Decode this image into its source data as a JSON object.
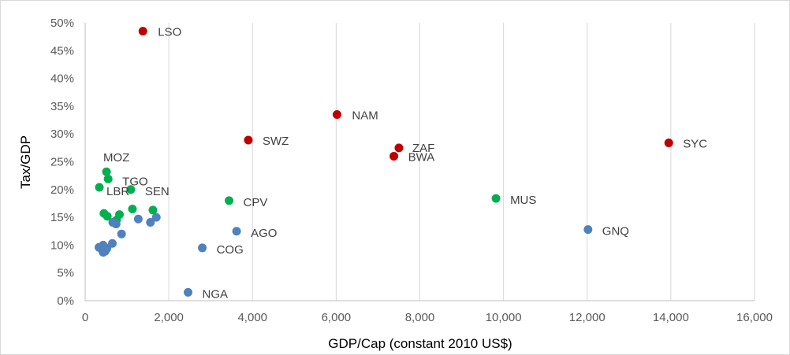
{
  "chart_data": {
    "type": "scatter",
    "title": "",
    "xlabel": "GDP/Cap (constant 2010 US$)",
    "ylabel": "Tax/GDP",
    "xlim": [
      0,
      16000
    ],
    "ylim": [
      0,
      0.5
    ],
    "x_ticks": [
      0,
      2000,
      4000,
      6000,
      8000,
      10000,
      12000,
      14000,
      16000
    ],
    "x_tick_labels": [
      "0",
      "2,000",
      "4,000",
      "6,000",
      "8,000",
      "10,000",
      "12,000",
      "14,000",
      "16,000"
    ],
    "y_ticks": [
      0,
      0.05,
      0.1,
      0.15,
      0.2,
      0.25,
      0.3,
      0.35,
      0.4,
      0.45,
      0.5
    ],
    "y_tick_labels": [
      "0%",
      "5%",
      "10%",
      "15%",
      "20%",
      "25%",
      "30%",
      "35%",
      "40%",
      "45%",
      "50%"
    ],
    "grid": {
      "vertical": true,
      "horizontal": false
    },
    "legend": "none",
    "series": [
      {
        "name": "red",
        "color": "#c00000",
        "points": [
          {
            "x": 1380,
            "y": 0.485,
            "label": "LSO"
          },
          {
            "x": 6020,
            "y": 0.335,
            "label": "NAM"
          },
          {
            "x": 3900,
            "y": 0.289,
            "label": "SWZ"
          },
          {
            "x": 7500,
            "y": 0.275,
            "label": "ZAF"
          },
          {
            "x": 7380,
            "y": 0.26,
            "label": "BWA"
          },
          {
            "x": 13950,
            "y": 0.284,
            "label": "SYC"
          }
        ]
      },
      {
        "name": "green",
        "color": "#00b050",
        "points": [
          {
            "x": 510,
            "y": 0.232,
            "label": "MOZ"
          },
          {
            "x": 550,
            "y": 0.219,
            "label": "TGO"
          },
          {
            "x": 340,
            "y": 0.204,
            "label": "LBR"
          },
          {
            "x": 1090,
            "y": 0.2,
            "label": "SEN"
          },
          {
            "x": 3440,
            "y": 0.18,
            "label": "CPV"
          },
          {
            "x": 9820,
            "y": 0.184,
            "label": "MUS"
          },
          {
            "x": 450,
            "y": 0.157,
            "label": ""
          },
          {
            "x": 530,
            "y": 0.152,
            "label": ""
          },
          {
            "x": 820,
            "y": 0.155,
            "label": ""
          },
          {
            "x": 1130,
            "y": 0.165,
            "label": ""
          },
          {
            "x": 1620,
            "y": 0.163,
            "label": ""
          },
          {
            "x": 750,
            "y": 0.145,
            "label": ""
          }
        ]
      },
      {
        "name": "blue",
        "color": "#4f81bd",
        "points": [
          {
            "x": 12020,
            "y": 0.128,
            "label": "GNQ"
          },
          {
            "x": 3620,
            "y": 0.125,
            "label": "AGO"
          },
          {
            "x": 2800,
            "y": 0.095,
            "label": "COG"
          },
          {
            "x": 2460,
            "y": 0.015,
            "label": "NGA"
          },
          {
            "x": 1700,
            "y": 0.15,
            "label": ""
          },
          {
            "x": 1270,
            "y": 0.147,
            "label": ""
          },
          {
            "x": 1560,
            "y": 0.141,
            "label": ""
          },
          {
            "x": 660,
            "y": 0.141,
            "label": ""
          },
          {
            "x": 740,
            "y": 0.138,
            "label": ""
          },
          {
            "x": 870,
            "y": 0.12,
            "label": ""
          },
          {
            "x": 650,
            "y": 0.103,
            "label": ""
          },
          {
            "x": 330,
            "y": 0.096,
            "label": ""
          },
          {
            "x": 400,
            "y": 0.092,
            "label": ""
          },
          {
            "x": 430,
            "y": 0.1,
            "label": ""
          },
          {
            "x": 470,
            "y": 0.096,
            "label": ""
          },
          {
            "x": 520,
            "y": 0.094,
            "label": ""
          },
          {
            "x": 430,
            "y": 0.087,
            "label": ""
          },
          {
            "x": 480,
            "y": 0.089,
            "label": ""
          }
        ]
      }
    ]
  }
}
